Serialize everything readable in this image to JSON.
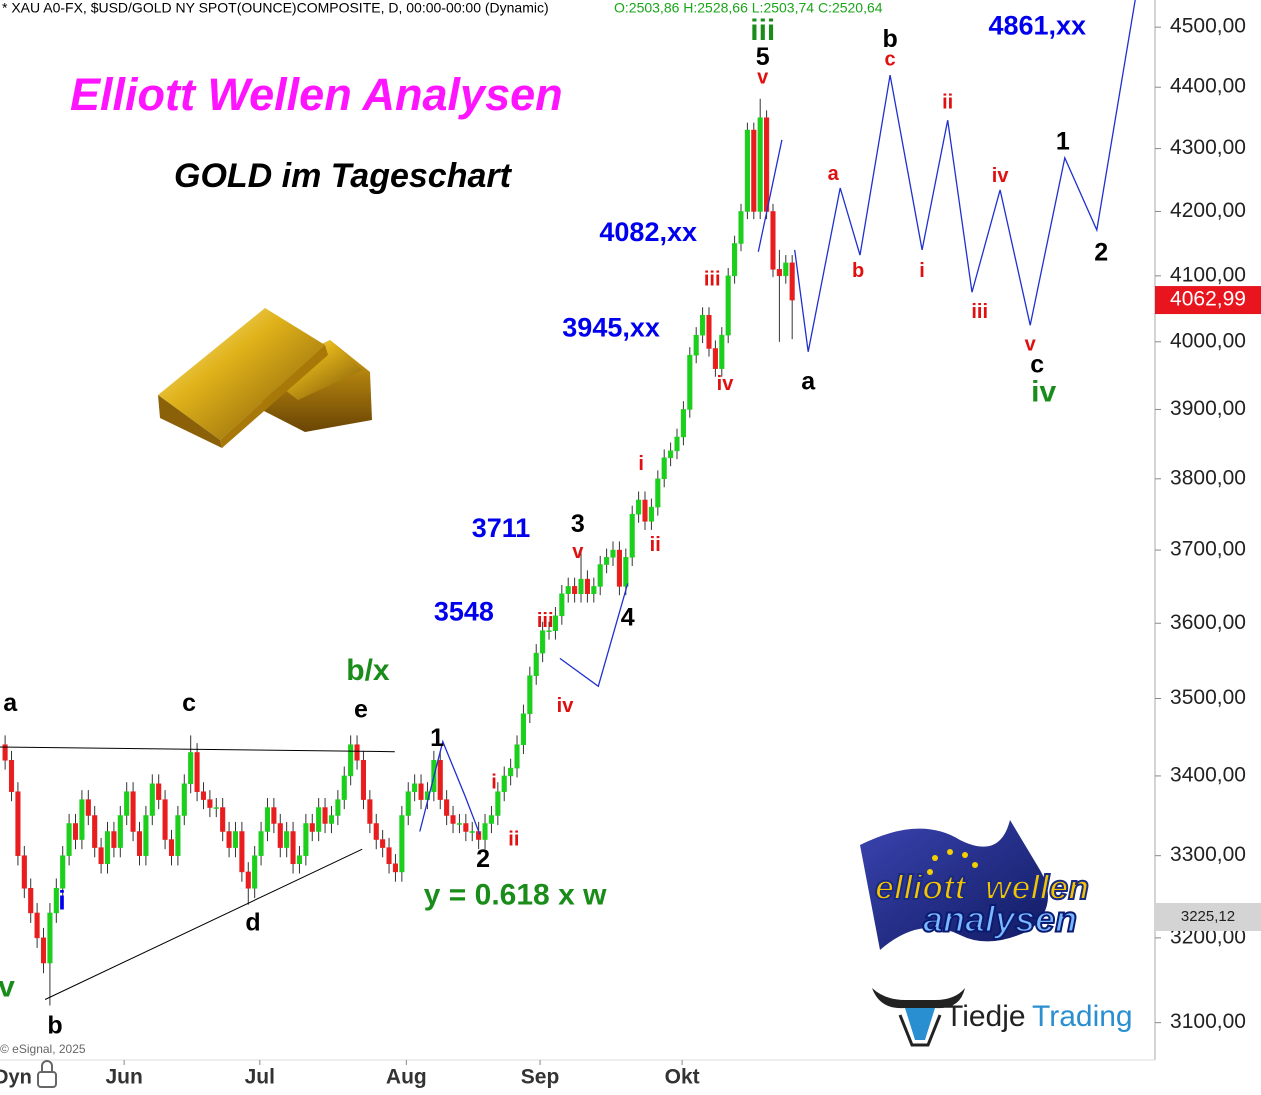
{
  "chart_data": {
    "type": "candlestick",
    "header_text": "* XAU A0-FX, $USD/GOLD NY SPOT(OUNCE)COMPOSITE, D, 00:00-00:00 (Dynamic)",
    "header_ohlc": "O:2503,86 H:2528,66 L:2503,74 C:2520,64",
    "title": "Elliott Wellen Analysen",
    "subtitle": "GOLD im Tageschart",
    "copyright": "© eSignal, 2025",
    "corner_label": "Dyn",
    "logo_texts": [
      "elliott",
      "wellen",
      "analysen"
    ],
    "brand_texts": [
      "Tiedje",
      "Trading"
    ],
    "log_y": true,
    "grid": false,
    "colors": {
      "up": "#1ccf1c",
      "down": "#e81e1e"
    },
    "xlim": [
      -0.8,
      179.7
    ],
    "ylim": [
      3057,
      4546
    ],
    "yticks": [
      {
        "value": 3100,
        "label": "3100,00"
      },
      {
        "value": 3200,
        "label": "3200,00"
      },
      {
        "value": 3300,
        "label": "3300,00"
      },
      {
        "value": 3400,
        "label": "3400,00"
      },
      {
        "value": 3500,
        "label": "3500,00"
      },
      {
        "value": 3600,
        "label": "3600,00"
      },
      {
        "value": 3700,
        "label": "3700,00"
      },
      {
        "value": 3800,
        "label": "3800,00"
      },
      {
        "value": 3900,
        "label": "3900,00"
      },
      {
        "value": 4000,
        "label": "4000,00"
      },
      {
        "value": 4100,
        "label": "4100,00"
      },
      {
        "value": 4200,
        "label": "4200,00"
      },
      {
        "value": 4300,
        "label": "4300,00"
      },
      {
        "value": 4400,
        "label": "4400,00"
      },
      {
        "value": 4500,
        "label": "4500,00"
      }
    ],
    "xticks": [
      {
        "value": 18.6,
        "label": "Jun"
      },
      {
        "value": 39.8,
        "label": "Jul"
      },
      {
        "value": 62.7,
        "label": "Aug"
      },
      {
        "value": 83.6,
        "label": "Sep"
      },
      {
        "value": 105.8,
        "label": "Okt"
      }
    ],
    "price_markers": [
      {
        "value": 4062.99,
        "label": "4062,99",
        "color": "#e8141e"
      },
      {
        "value": 3225.12,
        "label": "3225,12",
        "color": "#d4d4d4"
      }
    ],
    "open": [
      3440,
      3420,
      3380,
      3300,
      3260,
      3230,
      3200,
      3170,
      3230,
      3260,
      3300,
      3340,
      3320,
      3370,
      3350,
      3310,
      3290,
      3330,
      3310,
      3350,
      3380,
      3330,
      3300,
      3350,
      3390,
      3370,
      3320,
      3300,
      3350,
      3390,
      3430,
      3380,
      3370,
      3360,
      3360,
      3330,
      3310,
      3330,
      3280,
      3260,
      3300,
      3330,
      3360,
      3340,
      3310,
      3330,
      3290,
      3300,
      3340,
      3330,
      3360,
      3340,
      3350,
      3370,
      3400,
      3440,
      3420,
      3370,
      3340,
      3320,
      3310,
      3290,
      3280,
      3350,
      3380,
      3390,
      3370,
      3380,
      3420,
      3370,
      3350,
      3340,
      3340,
      3330,
      3330,
      3320,
      3340,
      3350,
      3380,
      3400,
      3410,
      3440,
      3480,
      3530,
      3560,
      3590,
      3590,
      3610,
      3640,
      3650,
      3640,
      3660,
      3640,
      3650,
      3680,
      3690,
      3700,
      3650,
      3690,
      3750,
      3770,
      3740,
      3760,
      3800,
      3830,
      3840,
      3860,
      3900,
      3980,
      4010,
      4040,
      3990,
      3960,
      4010,
      4100,
      4150,
      4200,
      4330,
      4200,
      4350,
      4200,
      4110,
      4100,
      4120
    ],
    "high": [
      3452,
      3432,
      3392,
      3312,
      3272,
      3242,
      3212,
      3242,
      3272,
      3312,
      3352,
      3352,
      3382,
      3382,
      3362,
      3322,
      3342,
      3342,
      3362,
      3392,
      3392,
      3342,
      3362,
      3402,
      3402,
      3382,
      3332,
      3362,
      3402,
      3452,
      3442,
      3392,
      3382,
      3372,
      3372,
      3342,
      3342,
      3342,
      3292,
      3312,
      3342,
      3372,
      3372,
      3352,
      3342,
      3342,
      3312,
      3352,
      3352,
      3372,
      3372,
      3362,
      3382,
      3412,
      3452,
      3452,
      3432,
      3382,
      3352,
      3332,
      3322,
      3302,
      3362,
      3392,
      3402,
      3402,
      3392,
      3432,
      3432,
      3382,
      3362,
      3352,
      3352,
      3342,
      3342,
      3352,
      3362,
      3392,
      3412,
      3422,
      3452,
      3492,
      3542,
      3572,
      3602,
      3602,
      3622,
      3652,
      3662,
      3662,
      3702,
      3672,
      3662,
      3692,
      3702,
      3712,
      3712,
      3702,
      3762,
      3782,
      3782,
      3772,
      3812,
      3842,
      3852,
      3872,
      3912,
      3992,
      4022,
      4052,
      4052,
      4002,
      4022,
      4112,
      4162,
      4212,
      4342,
      4342,
      4381,
      4362,
      4212,
      4140,
      4132,
      4132
    ],
    "low": [
      3408,
      3368,
      3288,
      3248,
      3218,
      3188,
      3158,
      3120,
      3218,
      3248,
      3288,
      3308,
      3308,
      3338,
      3298,
      3278,
      3278,
      3298,
      3298,
      3338,
      3318,
      3288,
      3288,
      3338,
      3358,
      3308,
      3288,
      3288,
      3338,
      3378,
      3368,
      3358,
      3348,
      3348,
      3318,
      3298,
      3298,
      3268,
      3240,
      3248,
      3288,
      3318,
      3328,
      3298,
      3298,
      3278,
      3278,
      3288,
      3318,
      3318,
      3328,
      3328,
      3338,
      3358,
      3388,
      3408,
      3358,
      3328,
      3308,
      3298,
      3278,
      3268,
      3268,
      3338,
      3368,
      3358,
      3358,
      3368,
      3358,
      3338,
      3328,
      3328,
      3318,
      3318,
      3308,
      3308,
      3328,
      3338,
      3368,
      3388,
      3398,
      3428,
      3468,
      3518,
      3548,
      3578,
      3578,
      3598,
      3628,
      3628,
      3628,
      3628,
      3628,
      3638,
      3668,
      3678,
      3638,
      3638,
      3678,
      3738,
      3728,
      3728,
      3748,
      3788,
      3818,
      3828,
      3848,
      3888,
      3968,
      3998,
      3978,
      3948,
      3948,
      3998,
      4088,
      4138,
      4188,
      4188,
      4188,
      4188,
      4098,
      4000,
      4088,
      4004
    ],
    "close": [
      3420,
      3380,
      3300,
      3260,
      3230,
      3200,
      3170,
      3230,
      3260,
      3300,
      3340,
      3320,
      3370,
      3350,
      3310,
      3290,
      3330,
      3310,
      3350,
      3380,
      3330,
      3300,
      3350,
      3390,
      3370,
      3320,
      3300,
      3350,
      3390,
      3430,
      3380,
      3370,
      3360,
      3360,
      3330,
      3310,
      3330,
      3280,
      3260,
      3300,
      3330,
      3360,
      3340,
      3310,
      3330,
      3290,
      3300,
      3340,
      3330,
      3360,
      3340,
      3350,
      3370,
      3400,
      3440,
      3420,
      3370,
      3340,
      3320,
      3310,
      3290,
      3280,
      3350,
      3380,
      3390,
      3370,
      3380,
      3420,
      3370,
      3350,
      3340,
      3340,
      3330,
      3330,
      3320,
      3340,
      3350,
      3380,
      3400,
      3410,
      3440,
      3480,
      3530,
      3560,
      3590,
      3590,
      3610,
      3640,
      3650,
      3640,
      3660,
      3640,
      3650,
      3680,
      3690,
      3700,
      3650,
      3690,
      3750,
      3770,
      3740,
      3760,
      3800,
      3830,
      3840,
      3860,
      3900,
      3980,
      4010,
      4040,
      3990,
      3960,
      4010,
      4100,
      4150,
      4200,
      4330,
      4200,
      4350,
      4200,
      4110,
      4100,
      4120,
      4062.99
    ],
    "lines": [
      {
        "color": "#000000",
        "x": [
          -0.8,
          60.9
        ],
        "values": [
          3437,
          3431
        ]
      },
      {
        "color": "#000000",
        "x": [
          6.25,
          55.8
        ],
        "values": [
          3127,
          3308
        ]
      },
      {
        "color": "#2030d0",
        "x": [
          64.8,
          68.4,
          71.9,
          74.2
        ],
        "values": [
          3330,
          3444,
          3374,
          3326
        ]
      },
      {
        "color": "#2030d0",
        "x": [
          86.7,
          92.7,
          97.3
        ],
        "values": [
          3553,
          3516,
          3654
        ]
      },
      {
        "color": "#2030d0",
        "x": [
          117.7,
          121.4
        ],
        "values": [
          4137,
          4314
        ]
      },
      {
        "color": "#2030d0",
        "x": [
          123.4,
          125.5,
          130.5,
          133.6,
          138.3,
          143.3,
          147.3,
          151.1,
          155.5,
          160.2,
          165.6,
          170.6,
          176.6
        ],
        "values": [
          4140,
          3985,
          4237,
          4132,
          4420,
          4140,
          4346,
          4075,
          4234,
          4025,
          4285,
          4171,
          4546
        ]
      }
    ],
    "annotations": [
      {
        "text": "a",
        "color": "#000000",
        "x": 0.8,
        "y": 3492
      },
      {
        "text": "b",
        "color": "#000000",
        "x": 7.8,
        "y": 3095
      },
      {
        "text": "v",
        "color": "#1a8c1a",
        "x": 0.2,
        "y": 3140
      },
      {
        "text": "i",
        "color": "#0000ee",
        "x": 8.9,
        "y": 3243
      },
      {
        "text": "c",
        "color": "#000000",
        "x": 28.75,
        "y": 3492
      },
      {
        "text": "d",
        "color": "#000000",
        "x": 38.75,
        "y": 3217
      },
      {
        "text": "e",
        "color": "#000000",
        "x": 55.6,
        "y": 3484
      },
      {
        "text": "b/x",
        "color": "#1a8c1a",
        "x": 56.7,
        "y": 3535
      },
      {
        "text": "1",
        "color": "#000000",
        "x": 67.5,
        "y": 3447
      },
      {
        "text": "2",
        "color": "#000000",
        "x": 74.7,
        "y": 3294
      },
      {
        "text": "i",
        "color": "#e01010",
        "x": 76.4,
        "y": 3391
      },
      {
        "text": "ii",
        "color": "#e01010",
        "x": 79.5,
        "y": 3319
      },
      {
        "text": "y = 0.618 x w",
        "color": "#1a8c1a",
        "x": 79.7,
        "y": 3250
      },
      {
        "text": "iii",
        "color": "#e01010",
        "x": 84.4,
        "y": 3602
      },
      {
        "text": "iv",
        "color": "#e01010",
        "x": 87.5,
        "y": 3489
      },
      {
        "text": "3548",
        "color": "#0000ee",
        "x": 71.7,
        "y": 3613
      },
      {
        "text": "3711",
        "color": "#0000ee",
        "x": 77.5,
        "y": 3728
      },
      {
        "text": "3",
        "color": "#000000",
        "x": 89.5,
        "y": 3734
      },
      {
        "text": "v",
        "color": "#e01010",
        "x": 89.5,
        "y": 3696
      },
      {
        "text": "4",
        "color": "#000000",
        "x": 97.3,
        "y": 3606
      },
      {
        "text": "i",
        "color": "#e01010",
        "x": 99.4,
        "y": 3820
      },
      {
        "text": "ii",
        "color": "#e01010",
        "x": 101.6,
        "y": 3706
      },
      {
        "text": "iii",
        "color": "#e01010",
        "x": 110.5,
        "y": 4093
      },
      {
        "text": "iv",
        "color": "#e01010",
        "x": 112.5,
        "y": 3936
      },
      {
        "text": "3945,xx",
        "color": "#0000ee",
        "x": 94.7,
        "y": 4019
      },
      {
        "text": "4082,xx",
        "color": "#0000ee",
        "x": 100.5,
        "y": 4165
      },
      {
        "text": "iii",
        "color": "#1a8c1a",
        "x": 118.4,
        "y": 4492
      },
      {
        "text": "5",
        "color": "#000000",
        "x": 118.4,
        "y": 4448
      },
      {
        "text": "v",
        "color": "#e01010",
        "x": 118.4,
        "y": 4415
      },
      {
        "text": "a",
        "color": "#000000",
        "x": 125.5,
        "y": 3939
      },
      {
        "text": "a",
        "color": "#e01010",
        "x": 129.4,
        "y": 4258
      },
      {
        "text": "b",
        "color": "#e01010",
        "x": 133.3,
        "y": 4106
      },
      {
        "text": "b",
        "color": "#000000",
        "x": 138.3,
        "y": 4478
      },
      {
        "text": "c",
        "color": "#e01010",
        "x": 138.3,
        "y": 4445
      },
      {
        "text": "ii",
        "color": "#e01010",
        "x": 147.3,
        "y": 4374
      },
      {
        "text": "i",
        "color": "#e01010",
        "x": 143.3,
        "y": 4106
      },
      {
        "text": "iii",
        "color": "#e01010",
        "x": 152.3,
        "y": 4044
      },
      {
        "text": "iv",
        "color": "#e01010",
        "x": 155.5,
        "y": 4255
      },
      {
        "text": "v",
        "color": "#e01010",
        "x": 160.2,
        "y": 3995
      },
      {
        "text": "c",
        "color": "#000000",
        "x": 161.3,
        "y": 3964
      },
      {
        "text": "iv",
        "color": "#1a8c1a",
        "x": 162.3,
        "y": 3923
      },
      {
        "text": "1",
        "color": "#000000",
        "x": 165.3,
        "y": 4309
      },
      {
        "text": "2",
        "color": "#000000",
        "x": 171.3,
        "y": 4134
      },
      {
        "text": "4861,xx",
        "color": "#0000ee",
        "x": 161.3,
        "y": 4500
      }
    ]
  }
}
